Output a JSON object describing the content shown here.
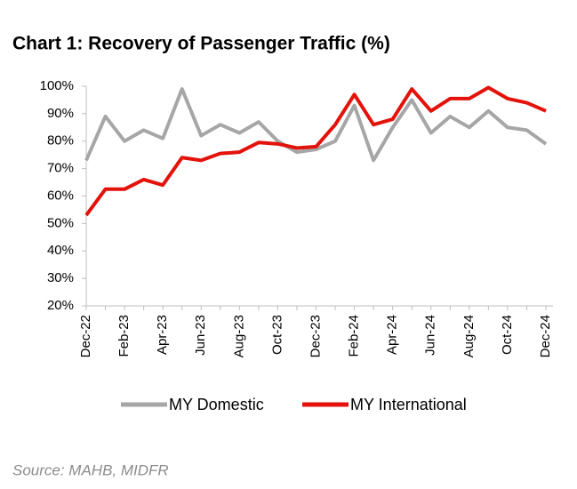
{
  "chart_data": {
    "type": "line",
    "title": "Chart 1: Recovery of Passenger Traffic (%)",
    "source": "Source: MAHB, MIDFR",
    "categories": [
      "Dec-22",
      null,
      "Feb-23",
      null,
      "Apr-23",
      null,
      "Jun-23",
      null,
      "Aug-23",
      null,
      "Oct-23",
      null,
      "Dec-23",
      null,
      "Feb-24",
      null,
      "Apr-24",
      null,
      "Jun-24",
      null,
      "Aug-24",
      null,
      "Oct-24",
      null,
      "Dec-24"
    ],
    "series": [
      {
        "name": "MY Domestic",
        "color": "#a6a6a6",
        "values": [
          73,
          89,
          80,
          84,
          81,
          99,
          82,
          86,
          83,
          87,
          80,
          76,
          77,
          80,
          93,
          73,
          85,
          95,
          83,
          89,
          85,
          91,
          85,
          84,
          79
        ]
      },
      {
        "name": "MY International",
        "color": "#e3120b",
        "values": [
          53,
          62.5,
          62.5,
          66,
          64,
          74,
          73,
          75.5,
          76,
          79.5,
          79,
          77.5,
          78,
          86,
          97,
          86,
          88,
          99,
          91,
          95.5,
          95.5,
          99.5,
          95.5,
          94,
          91
        ]
      }
    ],
    "ylim": [
      20,
      100
    ],
    "yticks": [
      {
        "value": 20,
        "label": "20%"
      },
      {
        "value": 30,
        "label": "30%"
      },
      {
        "value": 40,
        "label": "40%"
      },
      {
        "value": 50,
        "label": "50%"
      },
      {
        "value": 60,
        "label": "60%"
      },
      {
        "value": 70,
        "label": "70%"
      },
      {
        "value": 80,
        "label": "80%"
      },
      {
        "value": 90,
        "label": "90%"
      },
      {
        "value": 100,
        "label": "100%"
      }
    ],
    "grid": false,
    "legend": "bottom"
  }
}
